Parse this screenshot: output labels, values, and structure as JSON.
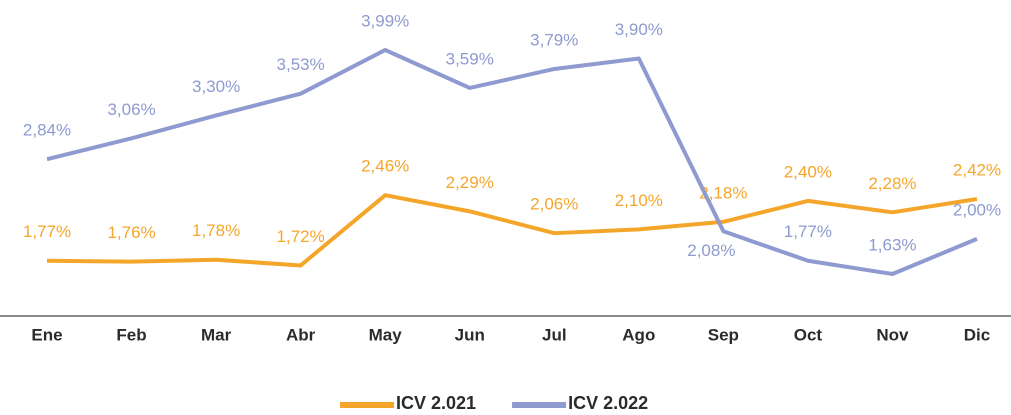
{
  "chart_data": {
    "type": "line",
    "categories": [
      "Ene",
      "Feb",
      "Mar",
      "Abr",
      "May",
      "Jun",
      "Jul",
      "Ago",
      "Sep",
      "Oct",
      "Nov",
      "Dic"
    ],
    "series": [
      {
        "name": "ICV 2.021",
        "color": "#f4a62a",
        "values": [
          1.77,
          1.76,
          1.78,
          1.72,
          2.46,
          2.29,
          2.06,
          2.1,
          2.18,
          2.4,
          2.28,
          2.42
        ],
        "value_labels": [
          "1,77%",
          "1,76%",
          "1,78%",
          "1,72%",
          "2,46%",
          "2,29%",
          "2,06%",
          "2,10%",
          "2,18%",
          "2,40%",
          "2,28%",
          "2,42%"
        ]
      },
      {
        "name": "ICV 2.022",
        "color": "#8e9ad0",
        "values": [
          2.84,
          3.06,
          3.3,
          3.53,
          3.99,
          3.59,
          3.79,
          3.9,
          2.08,
          1.77,
          1.63,
          2.0
        ],
        "value_labels": [
          "2,84%",
          "3,06%",
          "3,30%",
          "3,53%",
          "3,99%",
          "3,59%",
          "3,79%",
          "3,90%",
          "2,08%",
          "1,77%",
          "1,63%",
          "2,00%"
        ]
      }
    ]
  }
}
